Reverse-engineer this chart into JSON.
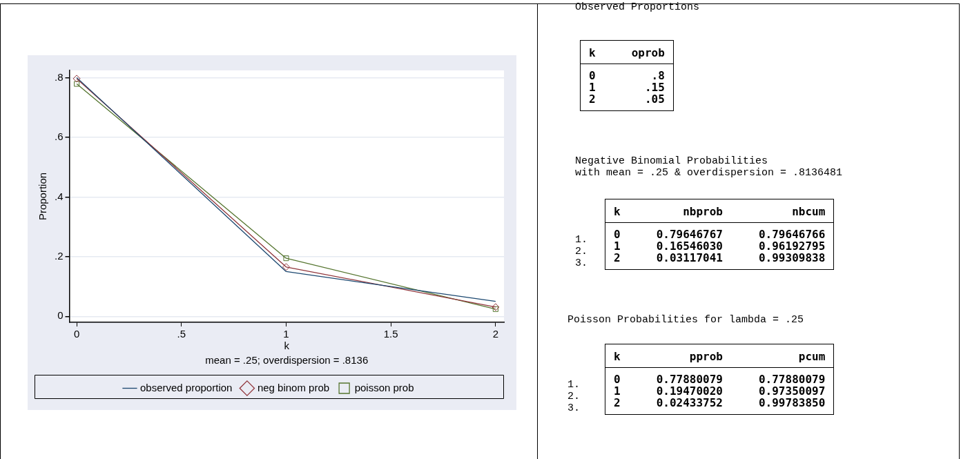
{
  "chart_data": [
    {
      "type": "line",
      "xlabel": "k",
      "ylabel": "Proportion",
      "x": [
        0,
        1,
        2
      ],
      "series": [
        {
          "name": "observed proportion",
          "color": "#1a476f",
          "marker": "none",
          "values": [
            0.8,
            0.15,
            0.05
          ]
        },
        {
          "name": "neg binom prob",
          "color": "#90353b",
          "marker": "diamond",
          "values": [
            0.79646767,
            0.1654603,
            0.03117041
          ]
        },
        {
          "name": "poisson prob",
          "color": "#55752f",
          "marker": "square",
          "values": [
            0.77880079,
            0.1947002,
            0.02433752
          ]
        }
      ],
      "xlim": [
        -0.035,
        2.04
      ],
      "xticks": [
        0,
        {
          "value": 0.5,
          "label": ".5"
        },
        1,
        1.5,
        2
      ],
      "ylim": [
        -0.02,
        0.824
      ],
      "yticks": [
        0,
        {
          "value": 0.2,
          "label": ".2"
        },
        {
          "value": 0.4,
          "label": ".4"
        },
        {
          "value": 0.6,
          "label": ".6"
        },
        {
          "value": 0.8,
          "label": ".8"
        }
      ],
      "grid": "y",
      "legend": "bottom",
      "annotations": [
        "mean = .25; overdispersion = .8136"
      ]
    },
    {
      "type": "other",
      "title": "Observed Proportions",
      "categories": [
        "k",
        "oprob"
      ],
      "cell_labels": [
        [
          "0",
          ".8"
        ],
        [
          "1",
          ".15"
        ],
        [
          "2",
          ".05"
        ]
      ]
    },
    {
      "type": "other",
      "title": "Negative Binomial Probabilities",
      "subtitle": "with mean = .25 & overdispersion = .8136481",
      "categories": [
        "k",
        "nbprob",
        "nbcum"
      ],
      "y_categories": [
        "1.",
        "2.",
        "3."
      ],
      "cell_labels": [
        [
          "0",
          "0.79646767",
          "0.79646766"
        ],
        [
          "1",
          "0.16546030",
          "0.96192795"
        ],
        [
          "2",
          "0.03117041",
          "0.99309838"
        ]
      ]
    },
    {
      "type": "other",
      "title": "Poisson Probabilities for lambda = .25",
      "categories": [
        "k",
        "pprob",
        "pcum"
      ],
      "y_categories": [
        "1.",
        "2.",
        "3."
      ],
      "cell_labels": [
        [
          "0",
          "0.77880079",
          "0.77880079"
        ],
        [
          "1",
          "0.19470020",
          "0.97350097"
        ],
        [
          "2",
          "0.02433752",
          "0.99783850"
        ]
      ]
    }
  ]
}
